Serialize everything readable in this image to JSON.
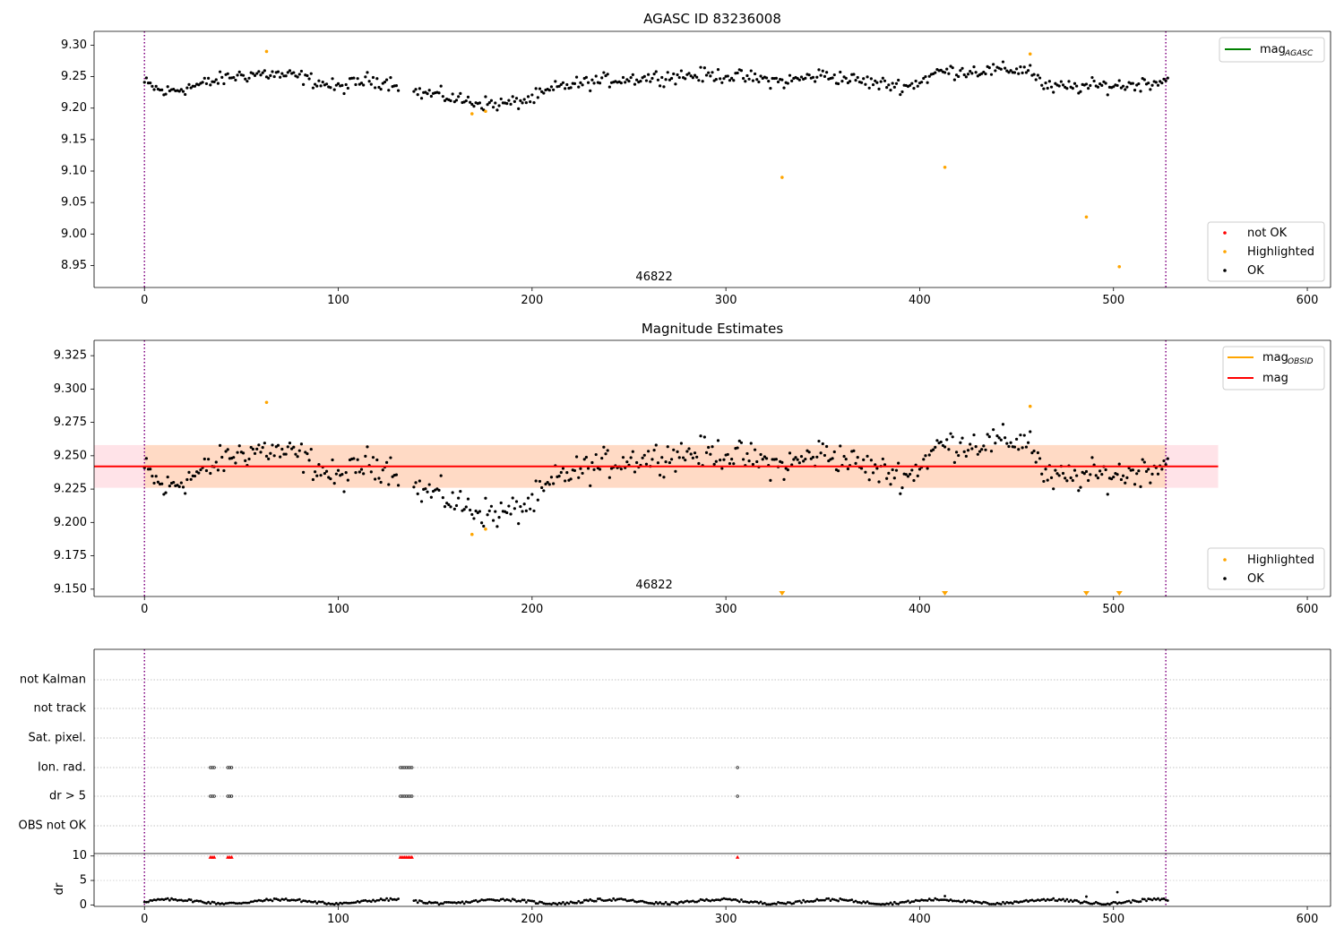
{
  "chart_data": [
    {
      "type": "scatter",
      "title": "AGASC ID 83236008",
      "annotation": "46822",
      "xlim": [
        -26,
        612
      ],
      "ylim": [
        8.915,
        9.322
      ],
      "xticks": [
        0,
        100,
        200,
        300,
        400,
        500,
        600
      ],
      "yticks": [
        8.95,
        9.0,
        9.05,
        9.1,
        9.15,
        9.2,
        9.25,
        9.3
      ],
      "ytick_labels": [
        "8.95",
        "9.00",
        "9.05",
        "9.10",
        "9.15",
        "9.20",
        "9.25",
        "9.30"
      ],
      "vlines": [
        0,
        527
      ],
      "legend_lines": [
        {
          "name": "mag",
          "subscript": "AGASC",
          "color": "#008000"
        }
      ],
      "legend_points": [
        {
          "name": "not OK",
          "color": "#ff0000"
        },
        {
          "name": "Highlighted",
          "color": "#ffa500"
        },
        {
          "name": "OK",
          "color": "#000000"
        }
      ],
      "series": [
        {
          "name": "Highlighted",
          "color": "#ffa500",
          "x": [
            63,
            169,
            176,
            329,
            413,
            457,
            486,
            503
          ],
          "y": [
            9.29,
            9.191,
            9.195,
            9.09,
            9.106,
            9.286,
            9.027,
            8.948
          ]
        }
      ],
      "ok_profile": {
        "x_start": 0,
        "x_end": 528,
        "gap": [
          131,
          139
        ],
        "knots_x": [
          0,
          10,
          30,
          45,
          60,
          80,
          100,
          115,
          130,
          140,
          150,
          165,
          180,
          190,
          200,
          215,
          240,
          280,
          300,
          330,
          350,
          380,
          395,
          410,
          440,
          457,
          465,
          490,
          510,
          528
        ],
        "knots_y": [
          9.24,
          9.225,
          9.238,
          9.25,
          9.255,
          9.25,
          9.232,
          9.245,
          9.24,
          9.225,
          9.222,
          9.212,
          9.206,
          9.208,
          9.215,
          9.235,
          9.245,
          9.252,
          9.252,
          9.242,
          9.253,
          9.238,
          9.235,
          9.258,
          9.26,
          9.262,
          9.232,
          9.235,
          9.237,
          9.245
        ],
        "spread": 0.007
      }
    },
    {
      "type": "scatter",
      "title": "Magnitude Estimates",
      "annotation": "46822",
      "xlim": [
        -26,
        612
      ],
      "ylim": [
        9.1445,
        9.3365
      ],
      "xticks": [
        0,
        100,
        200,
        300,
        400,
        500,
        600
      ],
      "yticks": [
        9.15,
        9.175,
        9.2,
        9.225,
        9.25,
        9.275,
        9.3,
        9.325
      ],
      "ytick_labels": [
        "9.150",
        "9.175",
        "9.200",
        "9.225",
        "9.250",
        "9.275",
        "9.300",
        "9.325"
      ],
      "vlines": [
        0,
        527
      ],
      "mag_line": {
        "value": 9.242,
        "x_range": [
          -26,
          554
        ],
        "color": "#ff0000"
      },
      "band": {
        "low": 9.226,
        "high": 9.258,
        "color": "#ffc0cb"
      },
      "band_obsid": {
        "low": 9.226,
        "high": 9.258,
        "x_range": [
          0,
          527
        ],
        "color": "#ffa500"
      },
      "legend_lines": [
        {
          "name": "mag",
          "subscript": "OBSID",
          "color": "#ffa500"
        },
        {
          "name": "mag",
          "subscript": "",
          "color": "#ff0000"
        }
      ],
      "legend_points": [
        {
          "name": "Highlighted",
          "color": "#ffa500"
        },
        {
          "name": "OK",
          "color": "#000000"
        }
      ],
      "series": [
        {
          "name": "Highlighted",
          "color": "#ffa500",
          "x": [
            63,
            169,
            176,
            457
          ],
          "y": [
            9.29,
            9.191,
            9.195,
            9.287
          ]
        }
      ],
      "out_of_range_markers": {
        "color": "#ffa500",
        "x": [
          329,
          413,
          486,
          503
        ]
      }
    },
    {
      "type": "scatter",
      "flags": [
        "not Kalman",
        "not track",
        "Sat. pixel.",
        "Ion. rad.",
        "dr > 5",
        "OBS not OK"
      ],
      "flag_points": {
        "Ion. rad.": [
          34,
          35,
          36,
          43,
          44,
          45,
          132,
          133,
          134,
          135,
          136,
          137,
          138,
          306
        ],
        "dr > 5": [
          34,
          35,
          36,
          43,
          44,
          45,
          132,
          133,
          134,
          135,
          136,
          137,
          138,
          306
        ]
      },
      "xlim": [
        -26,
        612
      ],
      "xticks": [
        0,
        100,
        200,
        300,
        400,
        500,
        600
      ],
      "vlines": [
        0,
        527
      ]
    },
    {
      "type": "scatter",
      "ylabel": "dr",
      "xlim": [
        -26,
        612
      ],
      "ylim": [
        -0.3,
        10.5
      ],
      "yticks": [
        0,
        5,
        10
      ],
      "xticks": [
        0,
        100,
        200,
        300,
        400,
        500,
        600
      ],
      "vlines": [
        0,
        527
      ],
      "high_dr": {
        "color": "#ff0000",
        "value": 10,
        "x": [
          34,
          35,
          36,
          43,
          44,
          45,
          132,
          133,
          134,
          135,
          136,
          137,
          138,
          306
        ]
      },
      "outliers": {
        "x": [
          413,
          486,
          502
        ],
        "y": [
          1.8,
          1.7,
          2.6
        ]
      },
      "gap": [
        131,
        139
      ]
    }
  ]
}
